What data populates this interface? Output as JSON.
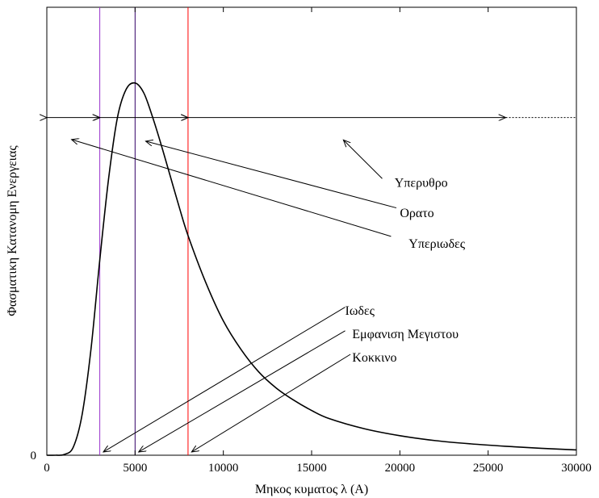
{
  "chart_data": {
    "type": "line",
    "title": "",
    "xlabel": "Μηκος κυματος λ (A)",
    "ylabel": "Φασματικη Κατανομη Ενεργειας",
    "xlim": [
      0,
      30000
    ],
    "ylim": [
      0,
      1.0
    ],
    "x_ticks": [
      "0",
      "5000",
      "10000",
      "15000",
      "20000",
      "25000",
      "30000"
    ],
    "y_ticks": [
      "0"
    ],
    "grid": false,
    "legend": "none",
    "series": [
      {
        "x": [
          0,
          500,
          1000,
          1500,
          2000,
          2500,
          3000,
          3500,
          4000,
          4500,
          5000,
          5500,
          6000,
          6500,
          7000,
          7500,
          8000,
          9000,
          10000,
          11000,
          12000,
          13000,
          14000,
          15000,
          16000,
          18000,
          20000,
          22000,
          24000,
          26000,
          28000,
          30000
        ],
        "y": [
          0,
          0,
          0.002,
          0.02,
          0.1,
          0.26,
          0.48,
          0.68,
          0.83,
          0.9,
          0.915,
          0.89,
          0.83,
          0.76,
          0.685,
          0.61,
          0.54,
          0.425,
          0.33,
          0.26,
          0.205,
          0.165,
          0.135,
          0.11,
          0.09,
          0.065,
          0.048,
          0.036,
          0.028,
          0.022,
          0.017,
          0.013
        ]
      }
    ],
    "vertical_lines": [
      {
        "x": 3000,
        "color": "#9933cc"
      },
      {
        "x": 5000,
        "color": "#330066"
      },
      {
        "x": 8000,
        "color": "#ff0000"
      }
    ],
    "range_arrows": [
      {
        "from": 0,
        "to": 3000,
        "y": 0.83
      },
      {
        "from": 3000,
        "to": 8000,
        "y": 0.83
      },
      {
        "from": 8000,
        "to": 26000,
        "y": 0.83,
        "dotted_to": 30000
      }
    ],
    "annotations": [
      {
        "text": "Υπερυθρο",
        "text_x": 19700,
        "text_y": 0.66,
        "arrow_from": [
          19000,
          0.68
        ],
        "arrow_to": [
          16800,
          0.775
        ]
      },
      {
        "text": "Ορατο",
        "text_x": 20000,
        "text_y": 0.585,
        "arrow_from": [
          19800,
          0.608
        ],
        "arrow_to": [
          5600,
          0.772
        ]
      },
      {
        "text": "Υπεριωδες",
        "text_x": 20500,
        "text_y": 0.51,
        "arrow_from": [
          19500,
          0.538
        ],
        "arrow_to": [
          1400,
          0.776
        ]
      },
      {
        "text": "Ιωδες",
        "text_x": 16900,
        "text_y": 0.345,
        "arrow_from": [
          16900,
          0.364
        ],
        "arrow_to": [
          3200,
          0.008
        ]
      },
      {
        "text": "Εμφανιση Μεγιστου",
        "text_x": 17300,
        "text_y": 0.288,
        "arrow_from": [
          16900,
          0.306
        ],
        "arrow_to": [
          5200,
          0.008
        ]
      },
      {
        "text": "Κοκκινο",
        "text_x": 17300,
        "text_y": 0.23,
        "arrow_from": [
          17200,
          0.248
        ],
        "arrow_to": [
          8200,
          0.008
        ]
      }
    ]
  }
}
